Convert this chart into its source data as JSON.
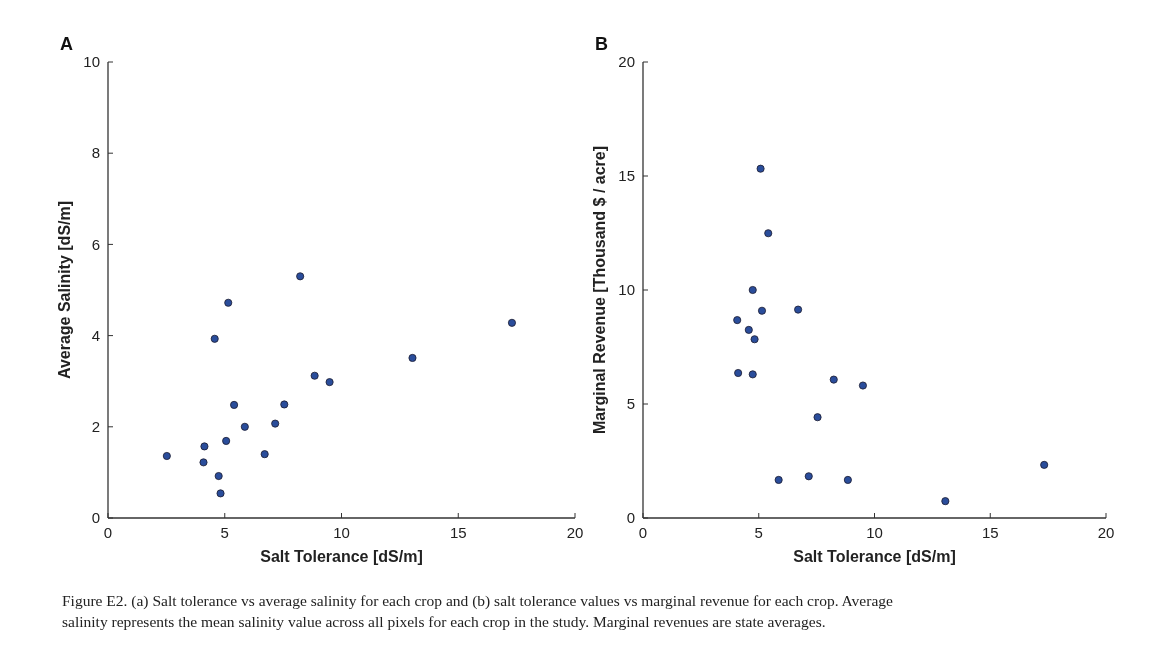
{
  "chart_data": [
    {
      "type": "scatter",
      "title": "A",
      "xlabel": "Salt Tolerance [dS/m]",
      "ylabel": "Average Salinity [dS/m]",
      "xlim": [
        0,
        20
      ],
      "xticks": [
        0,
        5,
        10,
        15,
        20
      ],
      "ylim": [
        0,
        10
      ],
      "yticks": [
        0,
        2,
        4,
        6,
        8,
        10
      ],
      "marker": "circle",
      "grid": false,
      "series": [
        {
          "color": "#2a4d9b",
          "x": [
            8.23,
            5.15,
            4.57,
            17.3,
            13.04,
            8.85,
            9.49,
            5.4,
            7.55,
            5.86,
            7.16,
            5.06,
            4.13,
            2.52,
            4.09,
            6.71,
            4.74,
            4.82
          ],
          "values": [
            5.3,
            4.72,
            3.93,
            4.28,
            3.51,
            3.12,
            2.98,
            2.48,
            2.49,
            2.0,
            2.07,
            1.69,
            1.57,
            1.36,
            1.22,
            1.4,
            0.92,
            0.54
          ]
        }
      ],
      "annotations": [
        "Figure E2. (a) Salt tolerance vs average salinity for each crop and (b) salt tolerance values vs marginal revenue for each crop. Average salinity represents the mean salinity value across all pixels for each crop in the study. Marginal revenues are state averages."
      ]
    },
    {
      "type": "scatter",
      "title": "B",
      "xlabel": "Salt Tolerance [dS/m]",
      "ylabel": "Marginal Revenue [Thousand $ / acre]",
      "xlim": [
        0,
        20
      ],
      "xticks": [
        0,
        5,
        10,
        15,
        20
      ],
      "ylim": [
        0,
        20
      ],
      "yticks": [
        0,
        5,
        10,
        15,
        20
      ],
      "marker": "circle",
      "grid": false,
      "series": [
        {
          "color": "#2a4d9b",
          "x": [
            5.08,
            5.41,
            4.74,
            5.14,
            6.7,
            4.07,
            4.57,
            4.82,
            4.11,
            4.74,
            8.24,
            9.5,
            7.54,
            5.86,
            7.16,
            8.85,
            13.06,
            17.33
          ],
          "values": [
            15.32,
            12.49,
            10.0,
            9.09,
            9.14,
            8.68,
            8.25,
            7.84,
            6.36,
            6.3,
            6.07,
            5.81,
            4.42,
            1.67,
            1.83,
            1.67,
            0.74,
            2.33
          ]
        }
      ]
    }
  ]
}
